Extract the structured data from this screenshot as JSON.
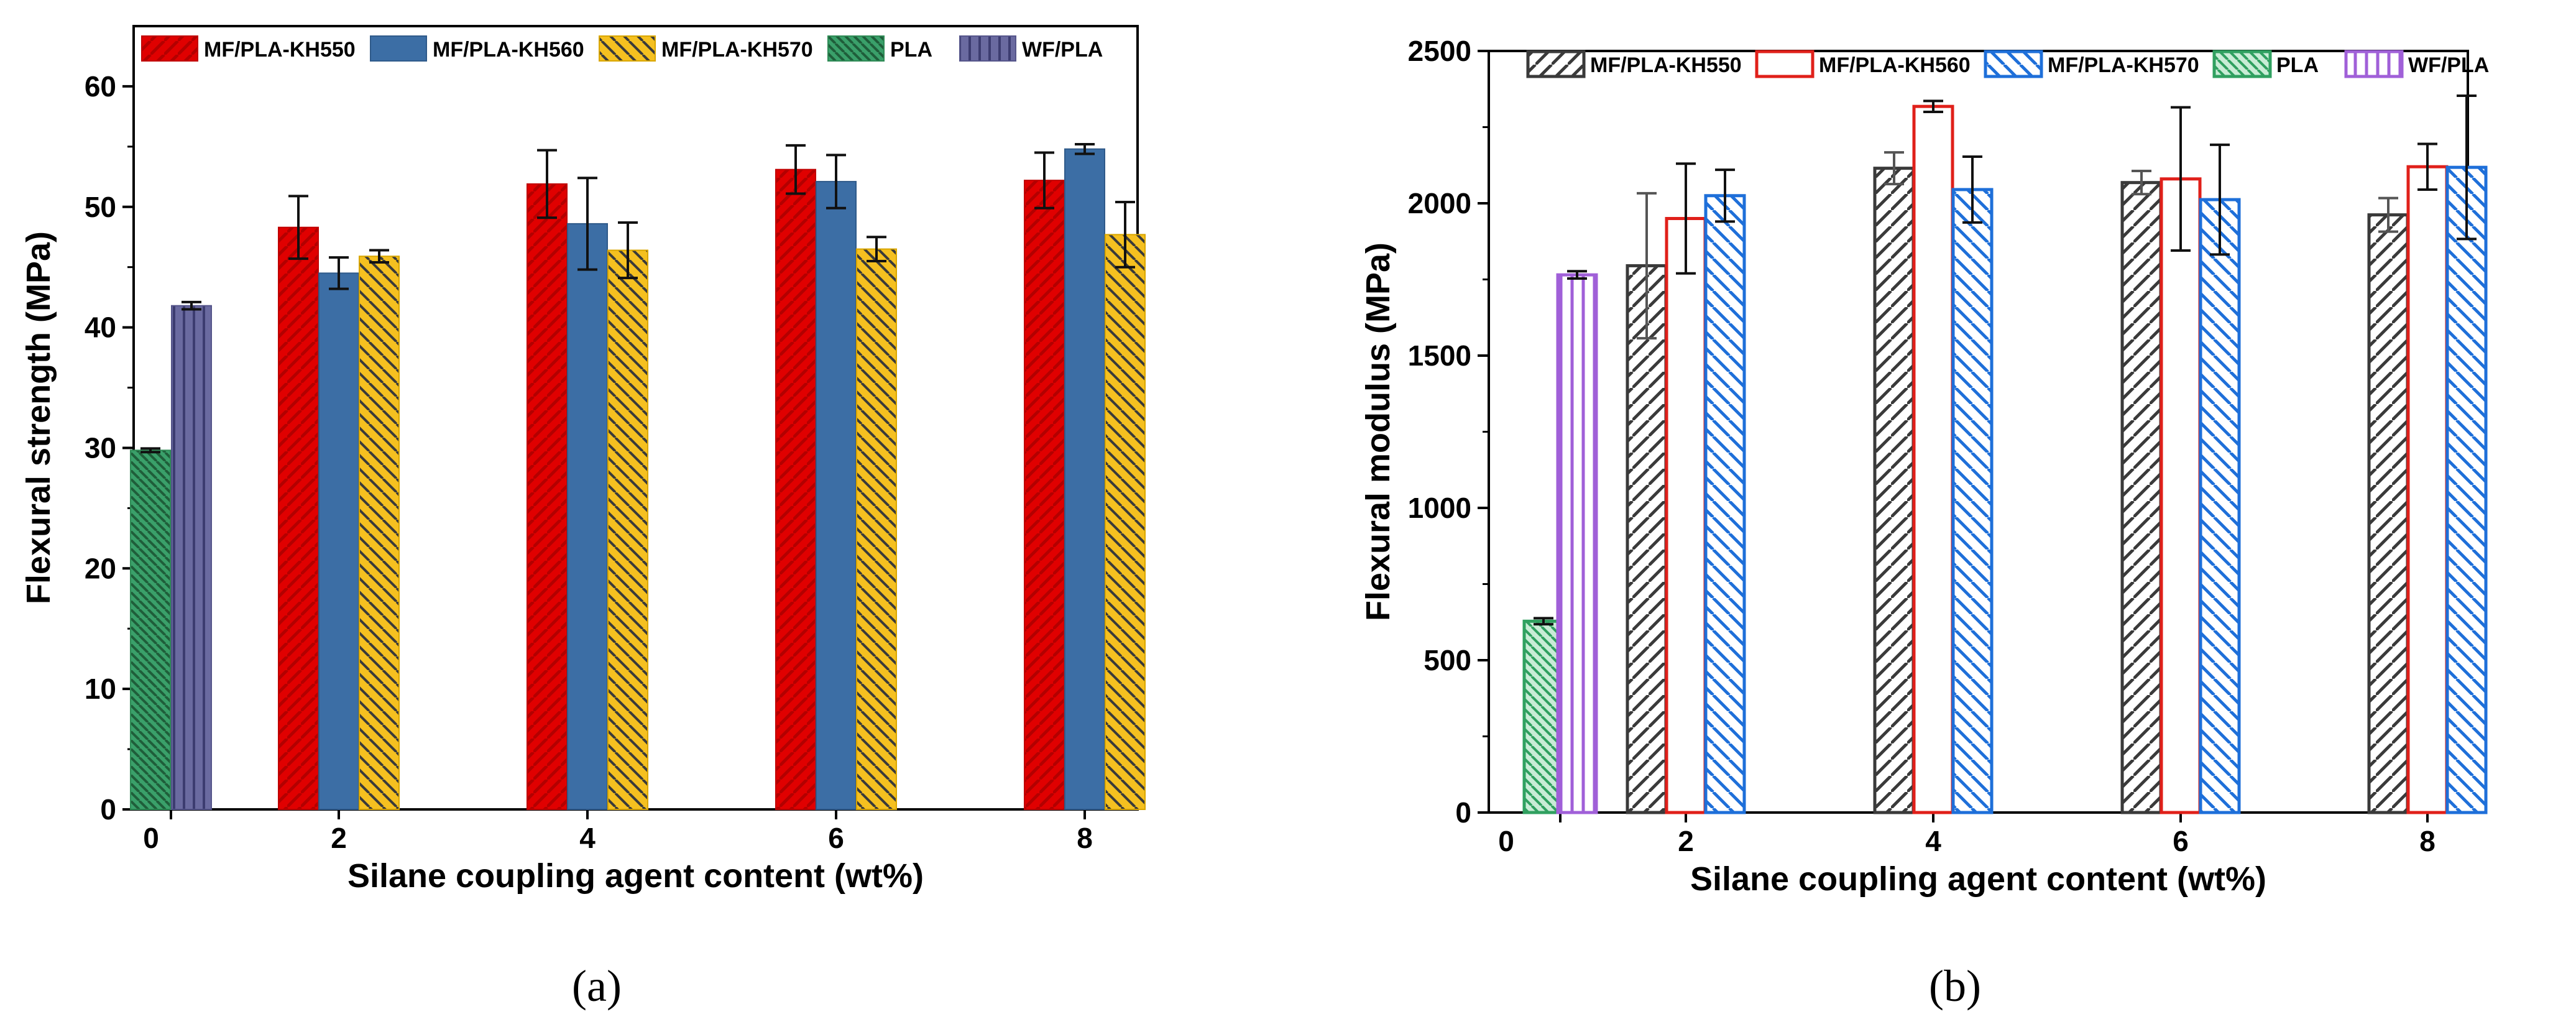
{
  "chart_data": [
    {
      "type": "bar",
      "panel": "a",
      "caption": "(a)",
      "xlabel": "Silane coupling agent content (wt%)",
      "ylabel": "Flexural strength (MPa)",
      "ylim": [
        0,
        65
      ],
      "yticks": [
        0,
        10,
        20,
        30,
        40,
        50,
        60
      ],
      "xticks": [
        "0",
        "2",
        "4",
        "6",
        "8"
      ],
      "legend_position": "top",
      "series": [
        {
          "name": "MF/PLA-KH550",
          "style": "hatched-fill",
          "fill": "#e00000",
          "stroke": "#c00000",
          "hatch": "#b30000",
          "groups": [
            "2",
            "4",
            "6",
            "8"
          ],
          "values": [
            48.3,
            51.9,
            53.1,
            52.2
          ],
          "errors": [
            2.6,
            2.8,
            2.0,
            2.3
          ]
        },
        {
          "name": "MF/PLA-KH560",
          "style": "solid-fill",
          "fill": "#3c6ea5",
          "stroke": "#2f5a8a",
          "groups": [
            "2",
            "4",
            "6",
            "8"
          ],
          "values": [
            44.5,
            48.6,
            52.1,
            54.8
          ],
          "errors": [
            1.3,
            3.8,
            2.2,
            0.4
          ]
        },
        {
          "name": "MF/PLA-KH570",
          "style": "hatched-fill",
          "fill": "#f5c020",
          "stroke": "#d9a600",
          "hatch": "#3a3a3a",
          "groups": [
            "2",
            "4",
            "6",
            "8"
          ],
          "values": [
            45.9,
            46.4,
            46.5,
            47.7
          ],
          "errors": [
            0.5,
            2.3,
            1.0,
            2.7
          ]
        },
        {
          "name": "PLA",
          "style": "hatched-fill",
          "fill": "#3aa06a",
          "stroke": "#2e8a55",
          "hatch": "#1f5e3a",
          "groups": [
            "0"
          ],
          "values": [
            29.8
          ],
          "errors": [
            0.15
          ]
        },
        {
          "name": "WF/PLA",
          "style": "vertical-lines",
          "fill": "#6a6aa0",
          "stroke": "#55558a",
          "hatch": "#3c3c70",
          "groups": [
            "0"
          ],
          "values": [
            41.8
          ],
          "errors": [
            0.3
          ]
        }
      ]
    },
    {
      "type": "bar",
      "panel": "b",
      "caption": "(b)",
      "xlabel": "Silane coupling agent content (wt%)",
      "ylabel": "Flexural modulus (MPa)",
      "ylim": [
        0,
        2500
      ],
      "yticks": [
        0,
        500,
        1000,
        1500,
        2000,
        2500
      ],
      "xticks": [
        "0",
        "2",
        "4",
        "6",
        "8"
      ],
      "legend_position": "top",
      "series": [
        {
          "name": "MF/PLA-KH550",
          "style": "hatched-outline",
          "fill": "none",
          "stroke": "#3a3a3a",
          "hatch": "#3a3a3a",
          "groups": [
            "2",
            "4",
            "6",
            "8"
          ],
          "values": [
            1795,
            2115,
            2068,
            1962
          ],
          "errors": [
            238,
            52,
            38,
            55
          ]
        },
        {
          "name": "MF/PLA-KH560",
          "style": "open-outline",
          "fill": "none",
          "stroke": "#e0201a",
          "groups": [
            "2",
            "4",
            "6",
            "8"
          ],
          "values": [
            1950,
            2318,
            2080,
            2120
          ],
          "errors": [
            180,
            18,
            235,
            75
          ]
        },
        {
          "name": "MF/PLA-KH570",
          "style": "hatched-outline",
          "fill": "none",
          "stroke": "#1e6fd9",
          "hatch": "#1e6fd9",
          "groups": [
            "2",
            "4",
            "6",
            "8"
          ],
          "values": [
            2025,
            2045,
            2012,
            2118
          ],
          "errors": [
            85,
            108,
            180,
            235
          ]
        },
        {
          "name": "PLA",
          "style": "hatched-fill",
          "fill": "#c9ecd6",
          "stroke": "#30a060",
          "hatch": "#30a060",
          "groups": [
            "0"
          ],
          "values": [
            628
          ],
          "errors": [
            10
          ]
        },
        {
          "name": "WF/PLA",
          "style": "vertical-lines",
          "fill": "none",
          "stroke": "#a060d8",
          "hatch": "#a060d8",
          "groups": [
            "0"
          ],
          "values": [
            1765
          ],
          "errors": [
            12
          ]
        }
      ]
    }
  ]
}
